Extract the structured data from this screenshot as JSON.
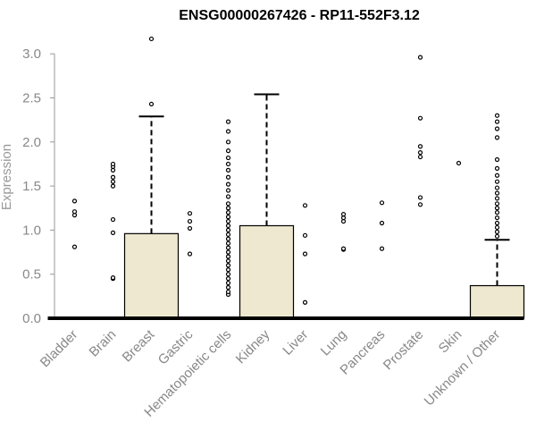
{
  "chart_data": {
    "type": "boxplot",
    "title": "ENSG00000267426 - RP11-552F3.12",
    "xlabel": "",
    "ylabel": "Expression",
    "ylim": [
      0,
      3.2
    ],
    "yticks": [
      "0.0",
      "0.5",
      "1.0",
      "1.5",
      "2.0",
      "2.5",
      "3.0"
    ],
    "grid": false,
    "box_fill": "#ede8cf",
    "categories": [
      "Bladder",
      "Brain",
      "Breast",
      "Gastric",
      "Hematopoietic cells",
      "Kidney",
      "Liver",
      "Lung",
      "Pancreas",
      "Prostate",
      "Skin",
      "Unknown / Other"
    ],
    "boxes": [
      {
        "name": "Bladder",
        "q1": 0,
        "median": 0,
        "q3": 0,
        "whisker_low": 0,
        "whisker_high": 0,
        "outliers": [
          0.81,
          1.17,
          1.21,
          1.33
        ]
      },
      {
        "name": "Brain",
        "q1": 0,
        "median": 0,
        "q3": 0,
        "whisker_low": 0,
        "whisker_high": 0,
        "outliers": [
          0.45,
          0.46,
          0.97,
          1.12,
          1.5,
          1.55,
          1.6,
          1.68,
          1.72,
          1.75
        ]
      },
      {
        "name": "Breast",
        "q1": 0,
        "median": 0,
        "q3": 0.96,
        "whisker_low": 0,
        "whisker_high": 2.29,
        "outliers": [
          2.43,
          3.17
        ]
      },
      {
        "name": "Gastric",
        "q1": 0,
        "median": 0,
        "q3": 0,
        "whisker_low": 0,
        "whisker_high": 0,
        "outliers": [
          0.73,
          1.02,
          1.1,
          1.19
        ]
      },
      {
        "name": "Hematopoietic cells",
        "q1": 0,
        "median": 0,
        "q3": 0,
        "whisker_low": 0,
        "whisker_high": 0,
        "outliers": [
          0.27,
          0.3,
          0.35,
          0.4,
          0.45,
          0.5,
          0.55,
          0.6,
          0.65,
          0.7,
          0.75,
          0.8,
          0.85,
          0.9,
          0.95,
          1.0,
          1.05,
          1.1,
          1.15,
          1.2,
          1.25,
          1.3,
          1.38,
          1.45,
          1.52,
          1.6,
          1.68,
          1.75,
          1.82,
          1.9,
          2.0,
          2.12,
          2.23
        ]
      },
      {
        "name": "Kidney",
        "q1": 0,
        "median": 0,
        "q3": 1.05,
        "whisker_low": 0,
        "whisker_high": 2.54,
        "outliers": []
      },
      {
        "name": "Liver",
        "q1": 0,
        "median": 0,
        "q3": 0,
        "whisker_low": 0,
        "whisker_high": 0,
        "outliers": [
          0.18,
          0.73,
          0.94,
          1.28
        ]
      },
      {
        "name": "Lung",
        "q1": 0,
        "median": 0,
        "q3": 0,
        "whisker_low": 0,
        "whisker_high": 0,
        "outliers": [
          0.78,
          0.79,
          1.1,
          1.14,
          1.18
        ]
      },
      {
        "name": "Pancreas",
        "q1": 0,
        "median": 0,
        "q3": 0,
        "whisker_low": 0,
        "whisker_high": 0,
        "outliers": [
          0.79,
          1.08,
          1.31
        ]
      },
      {
        "name": "Prostate",
        "q1": 0,
        "median": 0,
        "q3": 0,
        "whisker_low": 0,
        "whisker_high": 0,
        "outliers": [
          1.29,
          1.37,
          1.83,
          1.88,
          1.95,
          2.27,
          2.96
        ]
      },
      {
        "name": "Skin",
        "q1": 0,
        "median": 0,
        "q3": 0,
        "whisker_low": 0,
        "whisker_high": 0,
        "outliers": [
          1.76
        ]
      },
      {
        "name": "Unknown / Other",
        "q1": 0,
        "median": 0,
        "q3": 0.37,
        "whisker_low": 0,
        "whisker_high": 0.89,
        "outliers": [
          0.93,
          0.98,
          1.03,
          1.08,
          1.14,
          1.2,
          1.25,
          1.3,
          1.36,
          1.42,
          1.48,
          1.55,
          1.62,
          1.7,
          1.8,
          2.05,
          2.15,
          2.23,
          2.3
        ]
      }
    ]
  }
}
